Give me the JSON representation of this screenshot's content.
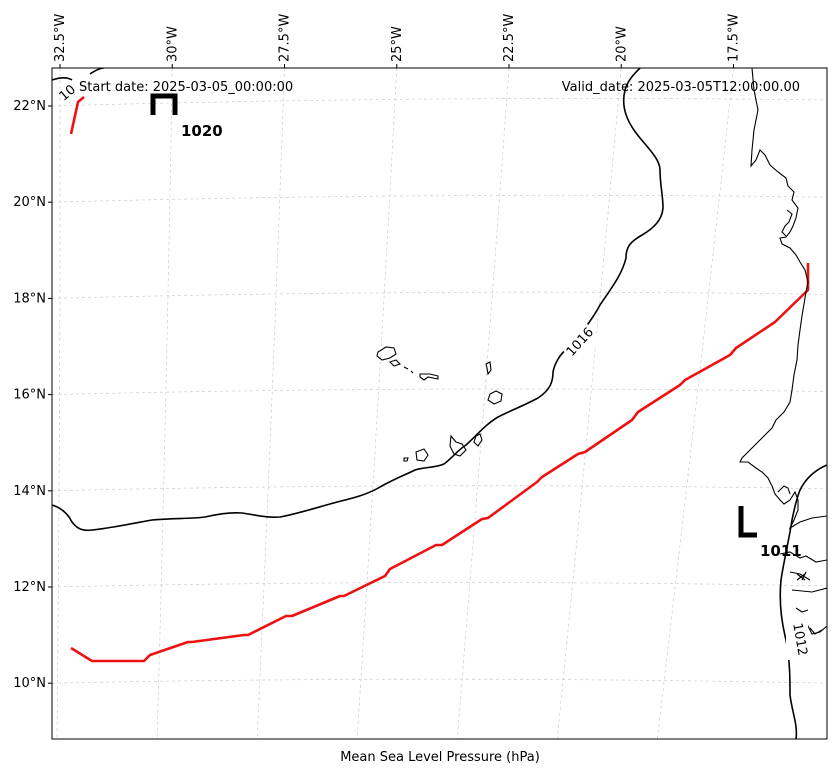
{
  "map": {
    "start_date": "Start date: 2025-03-05_00:00:00",
    "valid_date": "Valid_date: 2025-03-05T12:00:00.00",
    "xlabel": "Mean Sea Level Pressure (hPa)",
    "lon_ticks": [
      {
        "value": -32.5,
        "label": "32.5°W"
      },
      {
        "value": -30.0,
        "label": "30°W"
      },
      {
        "value": -27.5,
        "label": "27.5°W"
      },
      {
        "value": -25.0,
        "label": "25°W"
      },
      {
        "value": -22.5,
        "label": "22.5°W"
      },
      {
        "value": -20.0,
        "label": "20°W"
      },
      {
        "value": -17.5,
        "label": "17.5°W"
      }
    ],
    "lat_ticks": [
      {
        "value": 22,
        "label": "22°N"
      },
      {
        "value": 20,
        "label": "20°N"
      },
      {
        "value": 18,
        "label": "18°N"
      },
      {
        "value": 16,
        "label": "16°N"
      },
      {
        "value": 14,
        "label": "14°N"
      },
      {
        "value": 12,
        "label": "12°N"
      },
      {
        "value": 10,
        "label": "10°N"
      }
    ],
    "isobar_labels": [
      {
        "name": "isobar-label-1016",
        "text": "1016"
      },
      {
        "name": "isobar-label-1012",
        "text": "1012"
      },
      {
        "name": "isobar-label-partial",
        "text": "10"
      }
    ],
    "pressure_centers": [
      {
        "name": "high-center",
        "symbol": "H",
        "value": "1020"
      },
      {
        "name": "low-center",
        "symbol": "L",
        "value": "1011"
      }
    ],
    "colors": {
      "isobar": "#000000",
      "trough_line": "#ee1111",
      "gridline": "#cccccc",
      "coastline": "#000000"
    }
  }
}
